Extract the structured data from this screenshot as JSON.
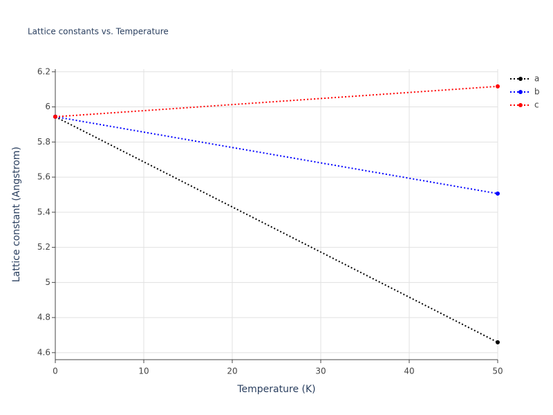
{
  "chart_data": {
    "type": "line",
    "title": "Lattice constants vs. Temperature",
    "x_label": "Temperature (K)",
    "y_label": "Lattice constant (Angstrom)",
    "x": [
      0,
      50
    ],
    "series": [
      {
        "name": "a",
        "color": "#000000",
        "values": [
          5.944,
          4.659
        ]
      },
      {
        "name": "b",
        "color": "#0000ff",
        "values": [
          5.944,
          5.506
        ]
      },
      {
        "name": "c",
        "color": "#ff0000",
        "values": [
          5.944,
          6.117
        ]
      }
    ],
    "xlim": [
      0,
      50
    ],
    "xticks": [
      0,
      10,
      20,
      30,
      40,
      50
    ],
    "ylim": [
      4.56,
      6.215
    ],
    "yticks": [
      4.6,
      4.8,
      5,
      5.2,
      5.4,
      5.6,
      5.8,
      6,
      6.2
    ],
    "grid": true,
    "legend": "right"
  }
}
